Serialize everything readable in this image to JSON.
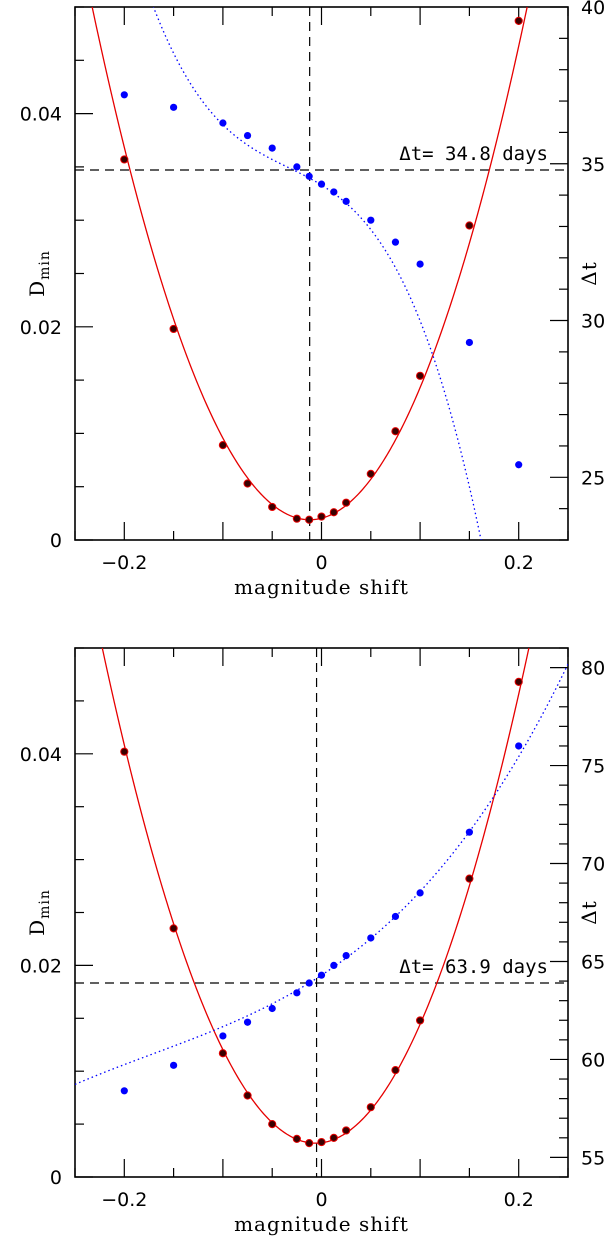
{
  "chart_data": [
    {
      "type": "scatter",
      "xlabel": "magnitude shift",
      "ylabel": "D",
      "ylabel_sub": "min",
      "y2label": "Δt",
      "xlim": [
        -0.25,
        0.25
      ],
      "ylim": [
        0,
        0.05
      ],
      "y2lim": [
        23,
        40
      ],
      "x_ticks": [
        "−0.2",
        "0",
        "0.2"
      ],
      "y_ticks": [
        "0",
        "0.02",
        "0.04"
      ],
      "y2_ticks": [
        "25",
        "30",
        "35",
        "40"
      ],
      "annotation": "Δt= 34.8 days",
      "marked_x": -0.012,
      "marked_dt": 34.8,
      "colors": {
        "dmin": "#e60000",
        "dt": "#0000ff",
        "marker_fill": "#3a0000"
      },
      "dmin_points": {
        "x": [
          -0.2,
          -0.15,
          -0.1,
          -0.075,
          -0.05,
          -0.025,
          -0.0125,
          0,
          0.0125,
          0.025,
          0.05,
          0.075,
          0.1,
          0.15,
          0.2
        ],
        "y": [
          0.0357,
          0.0198,
          0.0089,
          0.0053,
          0.0031,
          0.002,
          0.0019,
          0.0022,
          0.0026,
          0.0035,
          0.0062,
          0.0102,
          0.0154,
          0.0295,
          0.0487
        ]
      },
      "dmin_fit": {
        "x0": -0.012,
        "a": 0.9885,
        "c": 0.0019
      },
      "dt_points": {
        "x": [
          -0.2,
          -0.15,
          -0.1,
          -0.075,
          -0.05,
          -0.025,
          -0.0125,
          0,
          0.0125,
          0.025,
          0.05,
          0.075,
          0.1,
          0.15,
          0.2
        ],
        "y": [
          37.2,
          36.8,
          36.3,
          35.9,
          35.5,
          34.9,
          34.6,
          34.35,
          34.1,
          33.8,
          33.2,
          32.5,
          31.8,
          29.3,
          25.4
        ]
      },
      "dt_fit": {
        "type": "poly3",
        "coef": [
          34.32,
          -19.38,
          -120.36,
          -1187.0
        ]
      }
    },
    {
      "type": "scatter",
      "xlabel": "magnitude shift",
      "ylabel": "D",
      "ylabel_sub": "min",
      "y2label": "Δt",
      "xlim": [
        -0.25,
        0.25
      ],
      "ylim": [
        0,
        0.05
      ],
      "y2lim": [
        54,
        81
      ],
      "x_ticks": [
        "−0.2",
        "0",
        "0.2"
      ],
      "y_ticks": [
        "0",
        "0.02",
        "0.04"
      ],
      "y2_ticks": [
        "55",
        "60",
        "65",
        "70",
        "75",
        "80"
      ],
      "annotation": "Δt= 63.9 days",
      "marked_x": -0.005,
      "marked_dt": 63.9,
      "colors": {
        "dmin": "#e60000",
        "dt": "#0000ff",
        "marker_fill": "#3a0000"
      },
      "dmin_points": {
        "x": [
          -0.2,
          -0.15,
          -0.1,
          -0.075,
          -0.05,
          -0.025,
          -0.0125,
          0,
          0.0125,
          0.025,
          0.05,
          0.075,
          0.1,
          0.15,
          0.2
        ],
        "y": [
          0.0402,
          0.0235,
          0.0117,
          0.0077,
          0.005,
          0.0036,
          0.0032,
          0.0033,
          0.0037,
          0.0044,
          0.0066,
          0.0101,
          0.0148,
          0.0282,
          0.0468
        ]
      },
      "dmin_fit": {
        "x0": -0.006,
        "a": 1.0,
        "c": 0.0032
      },
      "dt_points": {
        "x": [
          -0.2,
          -0.15,
          -0.1,
          -0.075,
          -0.05,
          -0.025,
          -0.0125,
          0,
          0.0125,
          0.025,
          0.05,
          0.075,
          0.1,
          0.15,
          0.2
        ],
        "y": [
          58.4,
          59.7,
          61.2,
          61.9,
          62.6,
          63.4,
          63.9,
          64.3,
          64.8,
          65.3,
          66.2,
          67.3,
          68.5,
          71.6,
          76.0
        ]
      },
      "dt_fit": {
        "type": "poly3",
        "coef": [
          64.3,
          32.9,
          82.4,
          160.0
        ]
      }
    }
  ]
}
